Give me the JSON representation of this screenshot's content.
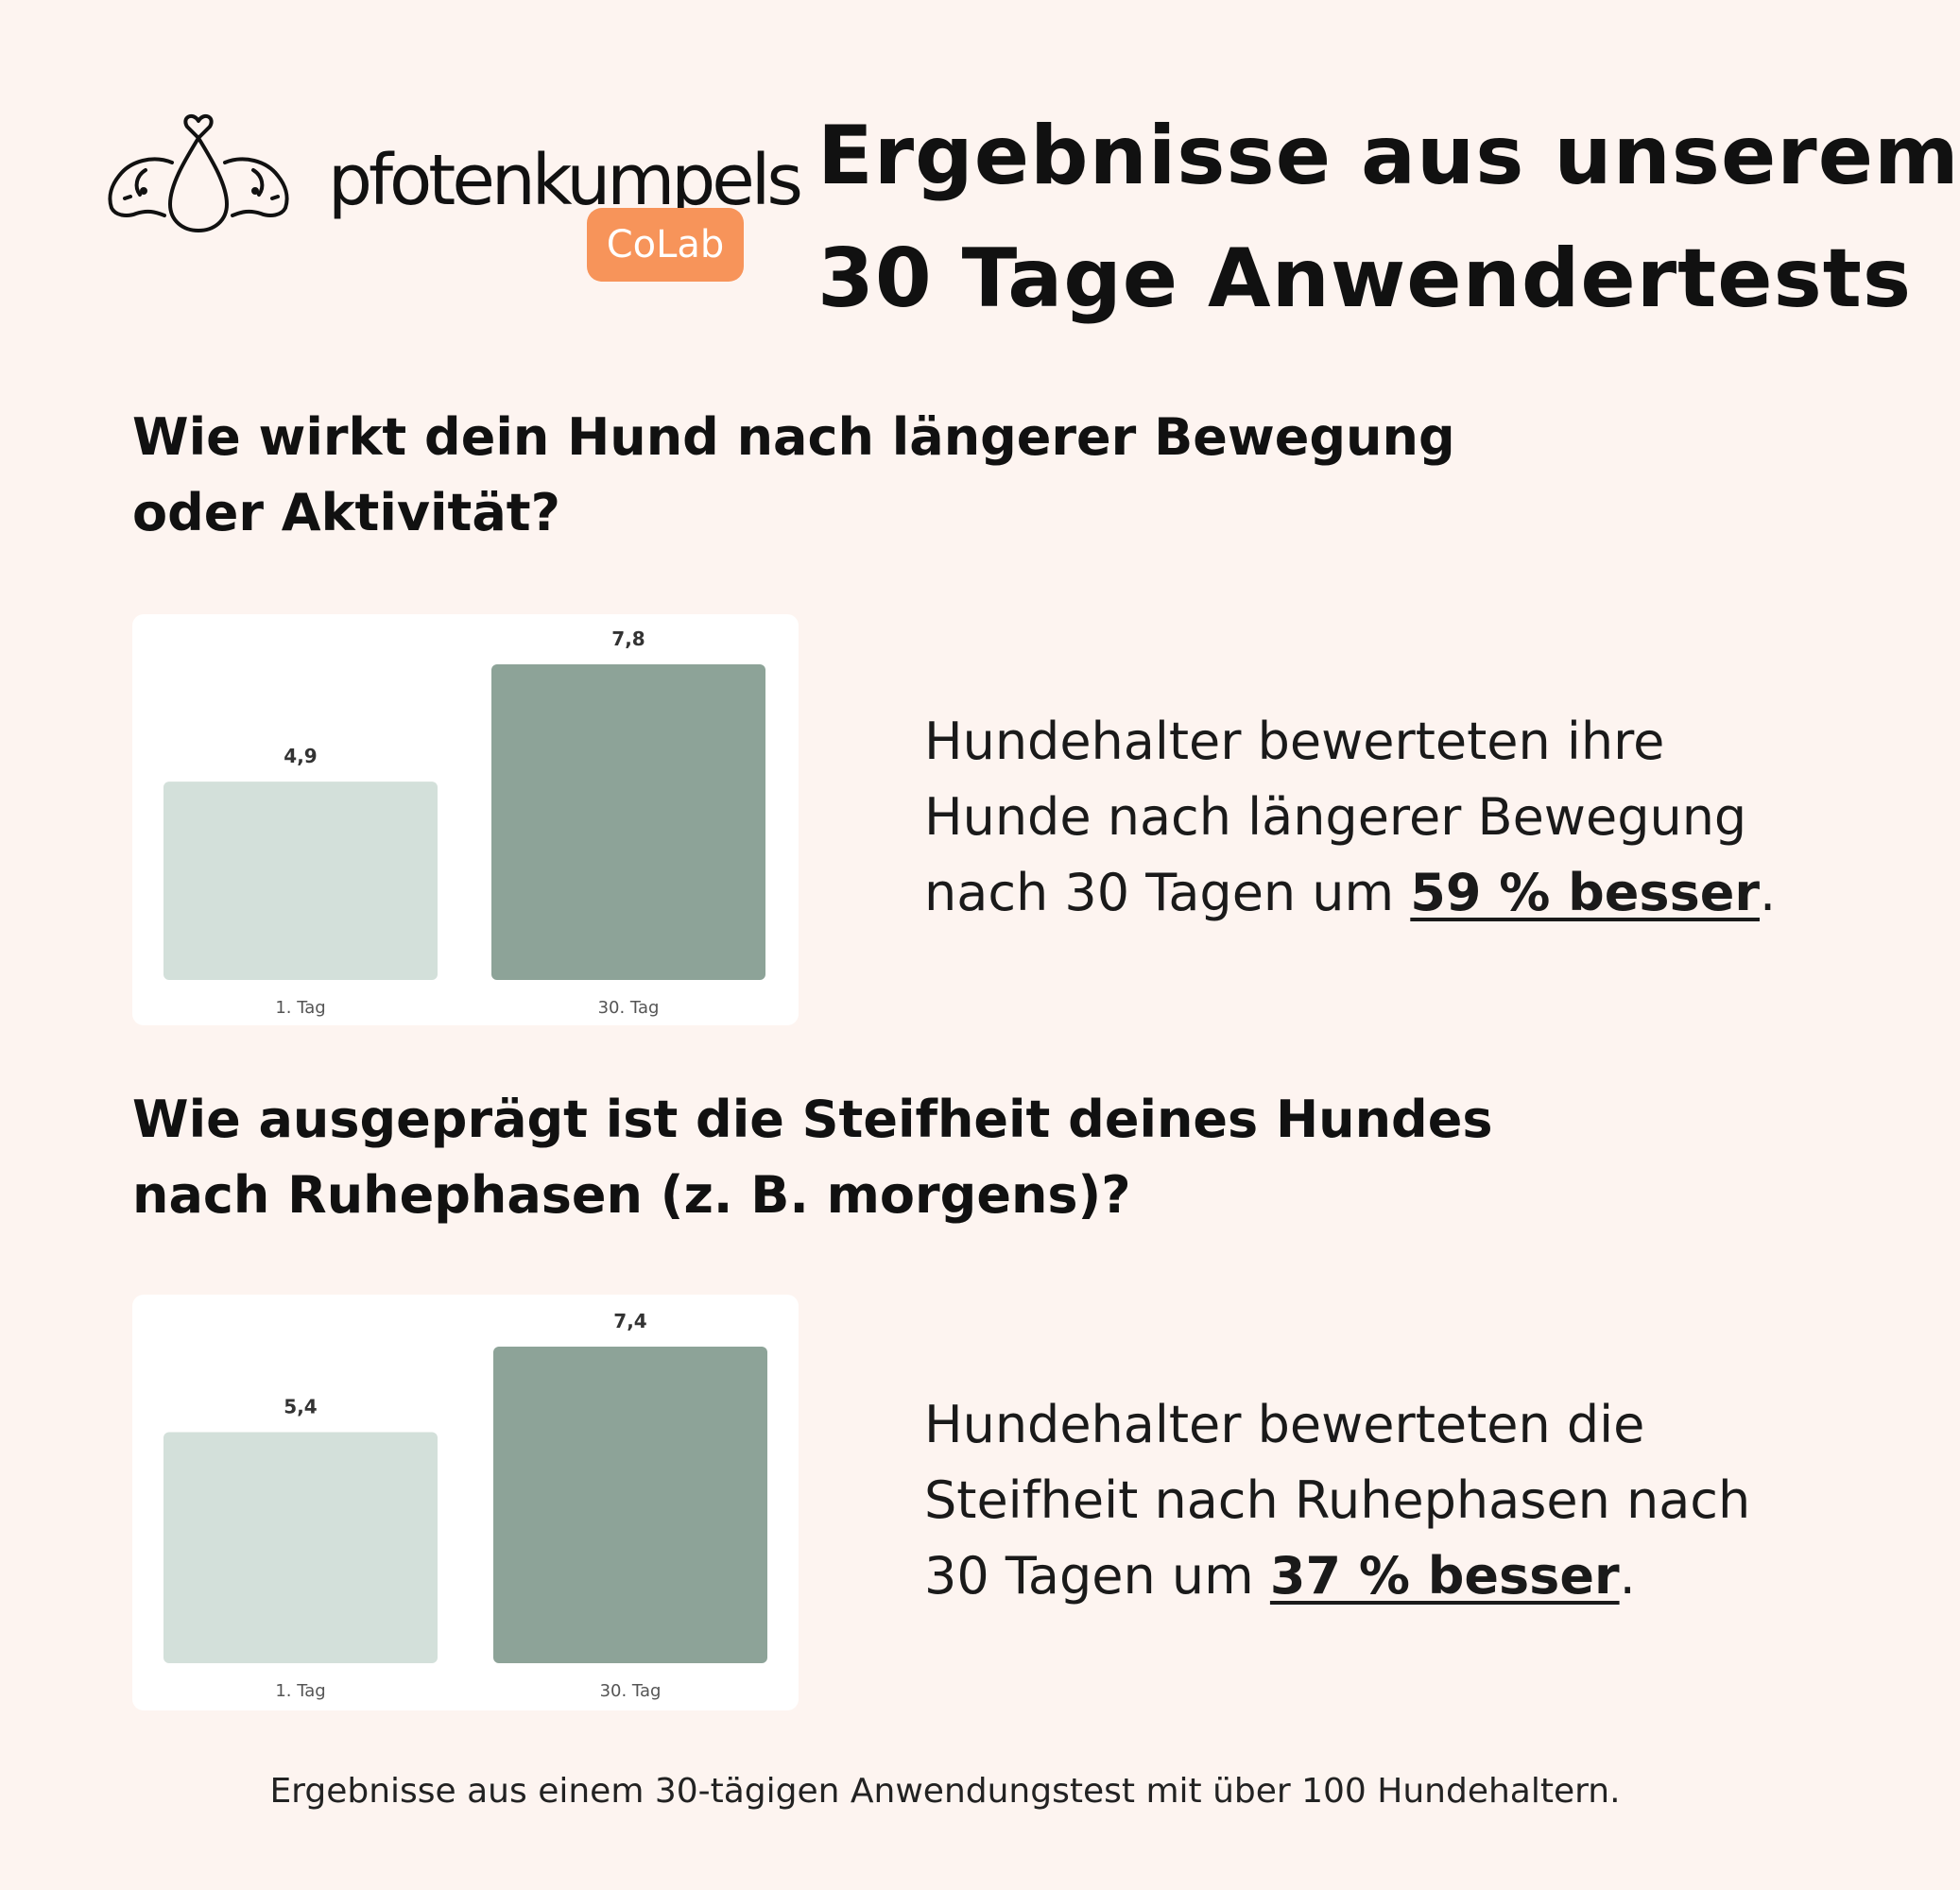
{
  "brand": {
    "name": "pfotenkumpels",
    "badge": "CoLab",
    "logo_icon": "two-dogs-heart-icon"
  },
  "header": {
    "title_line1": "Ergebnisse aus unserem",
    "title_line2": "30 Tage Anwendertests"
  },
  "sections": [
    {
      "question_line1": "Wie wirkt dein Hund nach längerer Bewegung",
      "question_line2": "oder Aktivität?",
      "result_line1": "Hundehalter bewerteten ihre",
      "result_line2": "Hunde nach längerer Bewegung",
      "result_line3_prefix": "nach 30 Tagen um ",
      "result_highlight": "59 % besser",
      "result_suffix": "."
    },
    {
      "question_line1": "Wie ausgeprägt ist die Steifheit deines Hundes",
      "question_line2": "nach Ruhephasen (z. B. morgens)?",
      "result_line1": "Hundehalter bewerteten die",
      "result_line2": "Steifheit nach Ruhephasen nach",
      "result_line3_prefix": "30 Tagen um ",
      "result_highlight": "37 % besser",
      "result_suffix": "."
    }
  ],
  "chart_data": [
    {
      "type": "bar",
      "categories": [
        "1. Tag",
        "30. Tag"
      ],
      "values": [
        4.9,
        7.8
      ],
      "value_labels": [
        "4,9",
        "7,8"
      ],
      "colors": [
        "#d3e0da",
        "#8da398"
      ],
      "ylim": [
        0,
        7.8
      ],
      "grid": false,
      "title": "",
      "xlabel": "",
      "ylabel": ""
    },
    {
      "type": "bar",
      "categories": [
        "1. Tag",
        "30. Tag"
      ],
      "values": [
        5.4,
        7.4
      ],
      "value_labels": [
        "5,4",
        "7,4"
      ],
      "colors": [
        "#d3e0da",
        "#8da398"
      ],
      "ylim": [
        0,
        7.4
      ],
      "grid": false,
      "title": "",
      "xlabel": "",
      "ylabel": ""
    }
  ],
  "footnote": "Ergebnisse aus einem 30-tägigen Anwendungstest mit über 100 Hundehaltern."
}
